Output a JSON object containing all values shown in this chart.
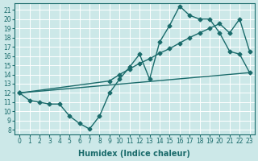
{
  "xlabel": "Humidex (Indice chaleur)",
  "ylabel": "",
  "bg_color": "#cce8e8",
  "line_color": "#1a6b6b",
  "grid_color": "#ffffff",
  "xlim": [
    -0.5,
    23.5
  ],
  "ylim": [
    7.5,
    21.7
  ],
  "yticks": [
    8,
    9,
    10,
    11,
    12,
    13,
    14,
    15,
    16,
    17,
    18,
    19,
    20,
    21
  ],
  "xticks": [
    0,
    1,
    2,
    3,
    4,
    5,
    6,
    7,
    8,
    9,
    10,
    11,
    12,
    13,
    14,
    15,
    16,
    17,
    18,
    19,
    20,
    21,
    22,
    23
  ],
  "line1_x": [
    0,
    1,
    2,
    3,
    4,
    5,
    6,
    7,
    8,
    9,
    10,
    11,
    12,
    13,
    14,
    15,
    16,
    17,
    18,
    19,
    20,
    21,
    22,
    23
  ],
  "line1_y": [
    12.0,
    11.2,
    11.0,
    10.8,
    10.8,
    9.5,
    8.7,
    8.1,
    9.5,
    12.0,
    13.5,
    14.8,
    16.2,
    13.5,
    17.5,
    19.3,
    21.4,
    20.4,
    20.0,
    20.0,
    18.5,
    16.5,
    16.2,
    14.2
  ],
  "line2_x": [
    0,
    9,
    10,
    11,
    12,
    13,
    14,
    15,
    16,
    17,
    18,
    19,
    20,
    21,
    22,
    23
  ],
  "line2_y": [
    12.0,
    13.3,
    14.0,
    14.6,
    15.2,
    15.7,
    16.3,
    16.8,
    17.4,
    18.0,
    18.5,
    19.0,
    19.5,
    18.5,
    20.0,
    16.5
  ],
  "line3_x": [
    0,
    23
  ],
  "line3_y": [
    12.0,
    14.2
  ],
  "marker": "D",
  "markersize": 2.5,
  "linewidth": 1.0,
  "tick_fontsize": 5.5,
  "xlabel_fontsize": 7
}
